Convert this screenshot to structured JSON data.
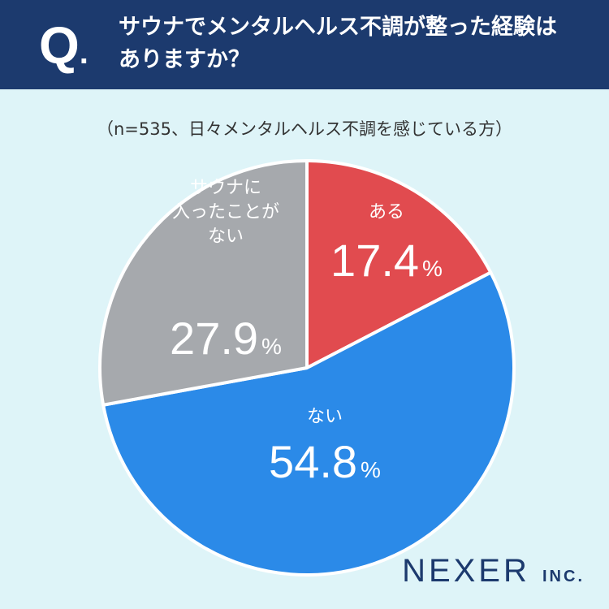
{
  "header": {
    "q_mark": "Q",
    "q_dot": ".",
    "question_line1": "サウナでメンタルヘルス不調が整った経験は",
    "question_line2": "ありますか？"
  },
  "subtitle": "（n=535、日々メンタルヘルス不調を感じている方）",
  "colors": {
    "header": "#1c3a6e",
    "background": "#def4f8"
  },
  "chart_data": {
    "type": "pie",
    "start_angle_deg": 0,
    "direction": "clockwise",
    "slices": [
      {
        "label_lines": [
          "ある"
        ],
        "value": 17.4,
        "value_text": "17.4",
        "unit": "%",
        "color": "#e14b4f"
      },
      {
        "label_lines": [
          "ない"
        ],
        "value": 54.8,
        "value_text": "54.8",
        "unit": "%",
        "color": "#2b8ae8"
      },
      {
        "label_lines": [
          "サウナに",
          "入ったことが",
          "ない"
        ],
        "value": 27.9,
        "value_text": "27.9",
        "unit": "%",
        "color": "#a6a9ad"
      }
    ]
  },
  "logo": {
    "name": "NEXER",
    "suffix": "INC."
  }
}
